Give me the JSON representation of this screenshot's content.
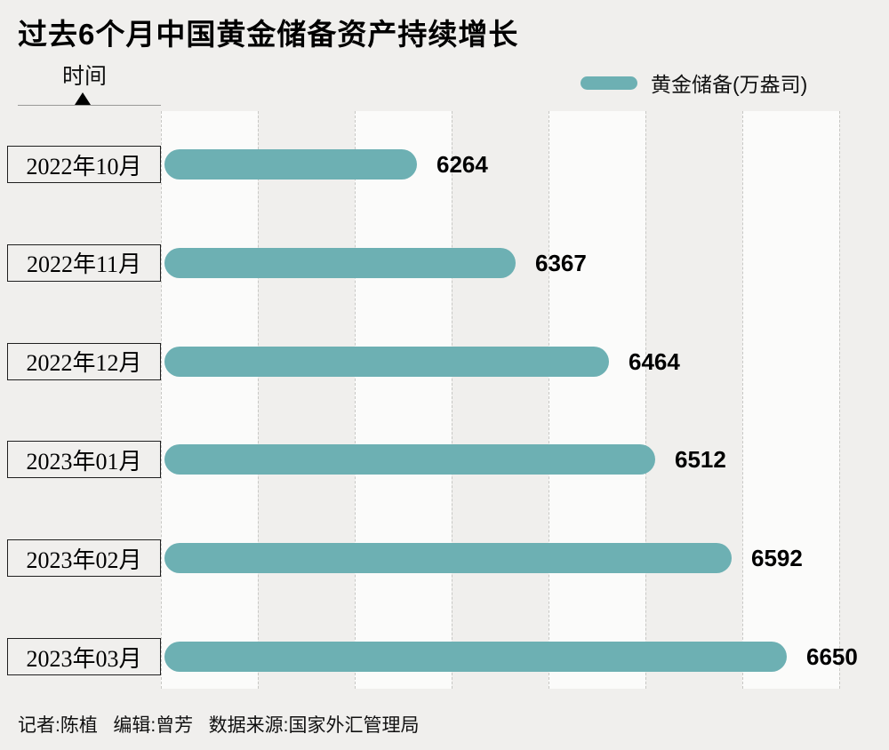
{
  "title": "过去6个月中国黄金储备资产持续增长",
  "axis_label": "时间",
  "legend": {
    "label": "黄金储备(万盎司)"
  },
  "footer": "记者:陈植   编辑:曾芳   数据来源:国家外汇管理局",
  "colors": {
    "bar": "#6db0b3",
    "background": "#f0efed",
    "band": "#fbfbfa",
    "value_text": "#000000"
  },
  "chart_data": {
    "type": "bar",
    "orientation": "horizontal",
    "title": "过去6个月中国黄金储备资产持续增长",
    "series_name": "黄金储备",
    "unit": "万盎司",
    "categories": [
      "2022年10月",
      "2022年11月",
      "2022年12月",
      "2023年01月",
      "2023年02月",
      "2023年03月"
    ],
    "values": [
      6264,
      6367,
      6464,
      6512,
      6592,
      6650
    ],
    "xmin": 6000,
    "xmax": 6760,
    "ylabel": "时间",
    "grid": "vertical-dashed",
    "legend_position": "top-right"
  }
}
